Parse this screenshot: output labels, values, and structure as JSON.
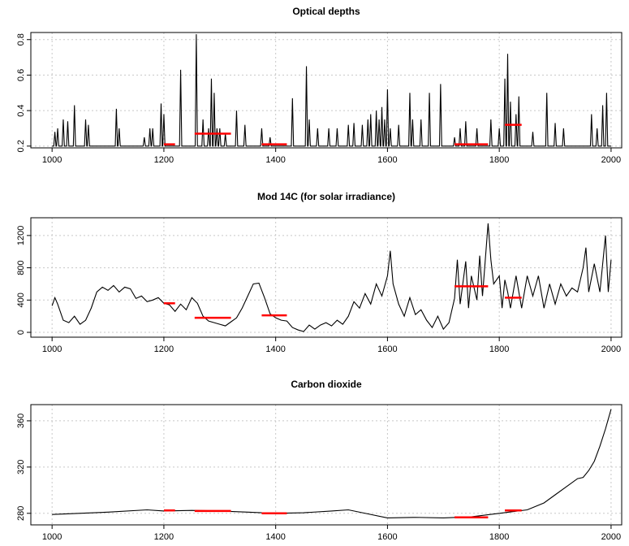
{
  "chart_data": [
    {
      "type": "line",
      "title": "Optical depths",
      "grid": true,
      "xlim": [
        962,
        2019
      ],
      "ylim": [
        0.19,
        0.84
      ],
      "xticks": [
        1000,
        1200,
        1400,
        1600,
        1800,
        2000
      ],
      "yticks": [
        0.2,
        0.4,
        0.6,
        0.8
      ],
      "series": [
        {
          "color": "#000000",
          "x": [
            1000,
            1003,
            1005,
            1007,
            1008,
            1010,
            1012,
            1018,
            1020,
            1022,
            1026,
            1028,
            1030,
            1038,
            1040,
            1042,
            1058,
            1060,
            1062,
            1063,
            1065,
            1067,
            1113,
            1115,
            1117,
            1118,
            1120,
            1122,
            1163,
            1165,
            1167,
            1173,
            1175,
            1177,
            1178,
            1180,
            1182,
            1193,
            1195,
            1197,
            1198,
            1200,
            1202,
            1228,
            1230,
            1232,
            1256,
            1258,
            1260,
            1268,
            1270,
            1272,
            1278,
            1280,
            1282,
            1283,
            1285,
            1287,
            1288,
            1290,
            1292,
            1293,
            1295,
            1297,
            1298,
            1300,
            1302,
            1308,
            1310,
            1312,
            1328,
            1330,
            1332,
            1343,
            1345,
            1347,
            1373,
            1375,
            1377,
            1388,
            1390,
            1392,
            1428,
            1430,
            1432,
            1453,
            1455,
            1457,
            1458,
            1460,
            1462,
            1473,
            1475,
            1477,
            1493,
            1495,
            1497,
            1508,
            1510,
            1512,
            1528,
            1530,
            1532,
            1538,
            1540,
            1542,
            1553,
            1555,
            1557,
            1563,
            1565,
            1567,
            1568,
            1570,
            1572,
            1578,
            1580,
            1582,
            1583,
            1585,
            1587,
            1588,
            1590,
            1592,
            1593,
            1595,
            1597,
            1598,
            1600,
            1602,
            1603,
            1605,
            1607,
            1618,
            1620,
            1622,
            1638,
            1640,
            1642,
            1643,
            1645,
            1647,
            1658,
            1660,
            1662,
            1673,
            1675,
            1677,
            1693,
            1695,
            1697,
            1718,
            1720,
            1722,
            1728,
            1730,
            1732,
            1738,
            1740,
            1742,
            1758,
            1760,
            1762,
            1783,
            1785,
            1787,
            1798,
            1800,
            1802,
            1808,
            1810,
            1812,
            1813,
            1815,
            1817,
            1818,
            1820,
            1822,
            1828,
            1830,
            1832,
            1833,
            1835,
            1837,
            1858,
            1860,
            1862,
            1883,
            1885,
            1887,
            1898,
            1900,
            1902,
            1913,
            1915,
            1917,
            1963,
            1965,
            1967,
            1973,
            1975,
            1977,
            1983,
            1985,
            1987,
            1990,
            1992,
            1994,
            2000
          ],
          "values": [
            0.2,
            0.2,
            0.28,
            0.2,
            0.2,
            0.3,
            0.2,
            0.2,
            0.35,
            0.2,
            0.2,
            0.34,
            0.2,
            0.2,
            0.43,
            0.2,
            0.2,
            0.35,
            0.2,
            0.2,
            0.32,
            0.2,
            0.2,
            0.41,
            0.2,
            0.2,
            0.3,
            0.2,
            0.2,
            0.25,
            0.2,
            0.2,
            0.3,
            0.2,
            0.2,
            0.3,
            0.2,
            0.2,
            0.44,
            0.2,
            0.2,
            0.38,
            0.2,
            0.2,
            0.63,
            0.2,
            0.2,
            0.83,
            0.2,
            0.2,
            0.35,
            0.2,
            0.2,
            0.3,
            0.2,
            0.2,
            0.58,
            0.2,
            0.2,
            0.5,
            0.2,
            0.2,
            0.3,
            0.2,
            0.2,
            0.3,
            0.2,
            0.2,
            0.27,
            0.2,
            0.2,
            0.4,
            0.2,
            0.2,
            0.32,
            0.2,
            0.2,
            0.3,
            0.2,
            0.2,
            0.25,
            0.2,
            0.2,
            0.47,
            0.2,
            0.2,
            0.65,
            0.2,
            0.2,
            0.35,
            0.2,
            0.2,
            0.3,
            0.2,
            0.2,
            0.3,
            0.2,
            0.2,
            0.3,
            0.2,
            0.2,
            0.32,
            0.2,
            0.2,
            0.33,
            0.2,
            0.2,
            0.32,
            0.2,
            0.2,
            0.35,
            0.2,
            0.2,
            0.38,
            0.2,
            0.2,
            0.4,
            0.2,
            0.2,
            0.35,
            0.2,
            0.2,
            0.42,
            0.2,
            0.2,
            0.35,
            0.2,
            0.2,
            0.52,
            0.2,
            0.2,
            0.3,
            0.2,
            0.2,
            0.32,
            0.2,
            0.2,
            0.5,
            0.2,
            0.2,
            0.35,
            0.2,
            0.2,
            0.35,
            0.2,
            0.2,
            0.5,
            0.2,
            0.2,
            0.55,
            0.2,
            0.2,
            0.25,
            0.2,
            0.2,
            0.3,
            0.2,
            0.2,
            0.34,
            0.2,
            0.2,
            0.3,
            0.2,
            0.2,
            0.35,
            0.2,
            0.2,
            0.3,
            0.2,
            0.2,
            0.58,
            0.2,
            0.2,
            0.72,
            0.2,
            0.2,
            0.45,
            0.2,
            0.2,
            0.38,
            0.2,
            0.2,
            0.48,
            0.2,
            0.2,
            0.28,
            0.2,
            0.2,
            0.5,
            0.2,
            0.2,
            0.33,
            0.2,
            0.2,
            0.3,
            0.2,
            0.2,
            0.38,
            0.2,
            0.2,
            0.3,
            0.2,
            0.2,
            0.43,
            0.2,
            0.2,
            0.5,
            0.2,
            0.2
          ]
        }
      ],
      "segments": {
        "color": "#ff0000",
        "items": [
          {
            "x": [
              1200,
              1220
            ],
            "value": 0.21
          },
          {
            "x": [
              1255,
              1320
            ],
            "value": 0.27
          },
          {
            "x": [
              1375,
              1420
            ],
            "value": 0.21
          },
          {
            "x": [
              1720,
              1780
            ],
            "value": 0.21
          },
          {
            "x": [
              1810,
              1840
            ],
            "value": 0.32
          }
        ]
      }
    },
    {
      "type": "line",
      "title": "Mod 14C (for solar irradiance)",
      "grid": true,
      "xlim": [
        962,
        2019
      ],
      "ylim": [
        -60,
        1420
      ],
      "xticks": [
        1000,
        1200,
        1400,
        1600,
        1800,
        2000
      ],
      "yticks": [
        0,
        400,
        800,
        1200
      ],
      "series": [
        {
          "color": "#000000",
          "x": [
            1000,
            1005,
            1010,
            1020,
            1030,
            1040,
            1050,
            1060,
            1070,
            1080,
            1090,
            1100,
            1110,
            1120,
            1130,
            1140,
            1150,
            1160,
            1170,
            1180,
            1190,
            1200,
            1210,
            1220,
            1230,
            1240,
            1250,
            1260,
            1270,
            1280,
            1290,
            1300,
            1310,
            1320,
            1330,
            1340,
            1350,
            1360,
            1370,
            1380,
            1390,
            1400,
            1410,
            1420,
            1430,
            1440,
            1450,
            1460,
            1470,
            1480,
            1490,
            1500,
            1510,
            1520,
            1530,
            1540,
            1550,
            1560,
            1570,
            1580,
            1590,
            1600,
            1605,
            1610,
            1620,
            1630,
            1640,
            1650,
            1660,
            1670,
            1680,
            1690,
            1700,
            1710,
            1720,
            1725,
            1730,
            1740,
            1745,
            1750,
            1760,
            1765,
            1770,
            1780,
            1785,
            1790,
            1800,
            1805,
            1810,
            1815,
            1820,
            1830,
            1840,
            1850,
            1860,
            1870,
            1880,
            1890,
            1900,
            1910,
            1920,
            1930,
            1940,
            1950,
            1955,
            1960,
            1970,
            1980,
            1990,
            1995,
            2000
          ],
          "values": [
            330,
            430,
            350,
            150,
            120,
            200,
            100,
            150,
            300,
            500,
            560,
            520,
            580,
            500,
            560,
            540,
            420,
            450,
            380,
            400,
            430,
            360,
            340,
            260,
            350,
            280,
            430,
            360,
            200,
            140,
            120,
            100,
            80,
            130,
            180,
            300,
            450,
            600,
            610,
            430,
            230,
            180,
            150,
            140,
            60,
            30,
            10,
            90,
            40,
            90,
            120,
            80,
            150,
            100,
            200,
            380,
            300,
            480,
            350,
            600,
            450,
            700,
            1010,
            600,
            350,
            200,
            430,
            220,
            280,
            150,
            60,
            200,
            40,
            120,
            420,
            900,
            350,
            880,
            300,
            700,
            400,
            950,
            450,
            1350,
            900,
            600,
            700,
            300,
            650,
            500,
            300,
            700,
            300,
            700,
            450,
            700,
            300,
            600,
            350,
            600,
            450,
            550,
            500,
            800,
            1050,
            500,
            850,
            500,
            1200,
            500,
            900
          ]
        }
      ],
      "segments": {
        "color": "#ff0000",
        "items": [
          {
            "x": [
              1200,
              1220
            ],
            "value": 360
          },
          {
            "x": [
              1255,
              1320
            ],
            "value": 180
          },
          {
            "x": [
              1375,
              1420
            ],
            "value": 210
          },
          {
            "x": [
              1720,
              1780
            ],
            "value": 570
          },
          {
            "x": [
              1810,
              1840
            ],
            "value": 430
          }
        ]
      }
    },
    {
      "type": "line",
      "title": "Carbon dioxide",
      "grid": true,
      "xlim": [
        962,
        2019
      ],
      "ylim": [
        270,
        374
      ],
      "xticks": [
        1000,
        1200,
        1400,
        1600,
        1800,
        2000
      ],
      "yticks": [
        280,
        320,
        360
      ],
      "series": [
        {
          "color": "#000000",
          "x": [
            1000,
            1100,
            1170,
            1200,
            1250,
            1300,
            1350,
            1400,
            1450,
            1500,
            1530,
            1560,
            1600,
            1650,
            1700,
            1750,
            1800,
            1850,
            1880,
            1900,
            1920,
            1940,
            1950,
            1960,
            1970,
            1980,
            1990,
            2000
          ],
          "values": [
            279,
            281,
            283,
            282,
            282.5,
            282,
            281,
            280,
            280.5,
            282,
            283,
            280,
            276,
            276.5,
            276,
            277,
            280,
            283,
            289,
            296,
            303,
            310,
            311,
            317,
            325,
            338,
            353,
            370
          ]
        }
      ],
      "segments": {
        "color": "#ff0000",
        "items": [
          {
            "x": [
              1200,
              1220
            ],
            "value": 282.5
          },
          {
            "x": [
              1255,
              1320
            ],
            "value": 282
          },
          {
            "x": [
              1375,
              1420
            ],
            "value": 280
          },
          {
            "x": [
              1720,
              1780
            ],
            "value": 276.5
          },
          {
            "x": [
              1810,
              1840
            ],
            "value": 282.5
          }
        ]
      }
    }
  ]
}
